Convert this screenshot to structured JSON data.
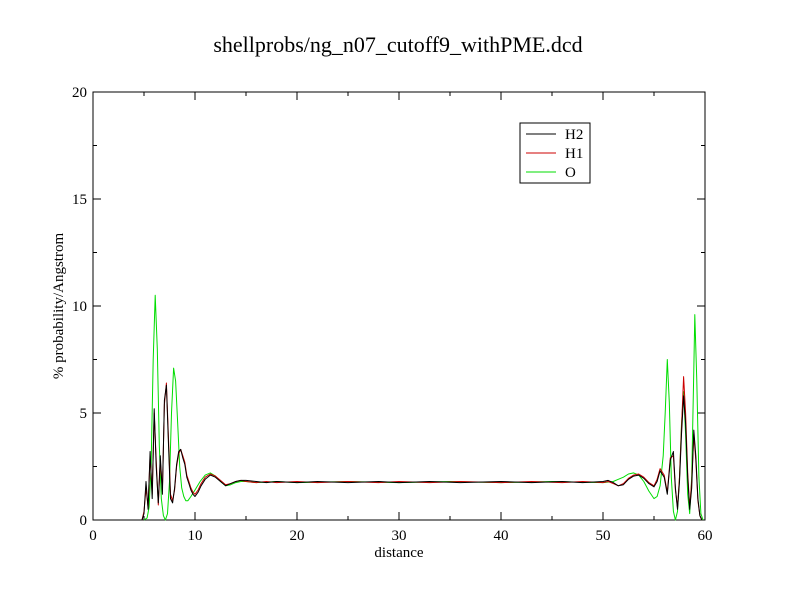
{
  "chart_data": {
    "type": "line",
    "title": "shellprobs/ng_n07_cutoff9_withPME.dcd",
    "xlabel": "distance",
    "ylabel": "% probability/Angstrom",
    "xlim": [
      0,
      60
    ],
    "ylim": [
      0,
      20
    ],
    "x_ticks": [
      0,
      10,
      20,
      30,
      40,
      50,
      60
    ],
    "y_ticks": [
      0,
      5,
      10,
      15,
      20
    ],
    "grid": false,
    "legend_position": "top-right",
    "series": [
      {
        "name": "H2",
        "color": "#000000",
        "points": [
          [
            4.8,
            0
          ],
          [
            5.0,
            0.3
          ],
          [
            5.2,
            1.8
          ],
          [
            5.4,
            0.5
          ],
          [
            5.6,
            3.2
          ],
          [
            5.8,
            1.0
          ],
          [
            6.0,
            5.2
          ],
          [
            6.2,
            2.5
          ],
          [
            6.4,
            0.8
          ],
          [
            6.6,
            3.0
          ],
          [
            6.8,
            1.2
          ],
          [
            7.0,
            5.6
          ],
          [
            7.2,
            6.3
          ],
          [
            7.4,
            3.5
          ],
          [
            7.6,
            1.0
          ],
          [
            7.8,
            0.8
          ],
          [
            8.0,
            1.5
          ],
          [
            8.2,
            2.6
          ],
          [
            8.4,
            3.2
          ],
          [
            8.6,
            3.3
          ],
          [
            8.8,
            2.9
          ],
          [
            9.0,
            2.6
          ],
          [
            9.2,
            2.0
          ],
          [
            9.4,
            1.7
          ],
          [
            9.6,
            1.4
          ],
          [
            9.8,
            1.2
          ],
          [
            10.0,
            1.1
          ],
          [
            10.3,
            1.3
          ],
          [
            10.6,
            1.6
          ],
          [
            11.0,
            1.9
          ],
          [
            11.5,
            2.1
          ],
          [
            12.0,
            2.0
          ],
          [
            12.5,
            1.8
          ],
          [
            13.0,
            1.6
          ],
          [
            13.5,
            1.7
          ],
          [
            14.0,
            1.8
          ],
          [
            14.5,
            1.85
          ],
          [
            15.0,
            1.85
          ],
          [
            16.0,
            1.8
          ],
          [
            17.0,
            1.75
          ],
          [
            18.0,
            1.8
          ],
          [
            20.0,
            1.75
          ],
          [
            22.0,
            1.8
          ],
          [
            25.0,
            1.75
          ],
          [
            28.0,
            1.8
          ],
          [
            30.0,
            1.75
          ],
          [
            33.0,
            1.8
          ],
          [
            36.0,
            1.75
          ],
          [
            40.0,
            1.8
          ],
          [
            43.0,
            1.75
          ],
          [
            46.0,
            1.8
          ],
          [
            48.0,
            1.75
          ],
          [
            50.0,
            1.8
          ],
          [
            50.5,
            1.85
          ],
          [
            51.0,
            1.75
          ],
          [
            51.5,
            1.6
          ],
          [
            52.0,
            1.65
          ],
          [
            52.5,
            1.9
          ],
          [
            53.0,
            2.05
          ],
          [
            53.5,
            2.1
          ],
          [
            54.0,
            1.95
          ],
          [
            54.5,
            1.7
          ],
          [
            55.0,
            1.55
          ],
          [
            55.3,
            1.8
          ],
          [
            55.6,
            2.3
          ],
          [
            56.0,
            2.0
          ],
          [
            56.3,
            1.2
          ],
          [
            56.6,
            2.8
          ],
          [
            56.9,
            3.2
          ],
          [
            57.1,
            1.5
          ],
          [
            57.3,
            0.5
          ],
          [
            57.5,
            1.8
          ],
          [
            57.7,
            4.0
          ],
          [
            57.9,
            5.8
          ],
          [
            58.1,
            4.5
          ],
          [
            58.3,
            2.0
          ],
          [
            58.5,
            0.5
          ],
          [
            58.7,
            1.5
          ],
          [
            58.9,
            4.2
          ],
          [
            59.1,
            3.0
          ],
          [
            59.3,
            1.0
          ],
          [
            59.5,
            0.2
          ],
          [
            59.7,
            0
          ]
        ]
      },
      {
        "name": "H1",
        "color": "#cc0000",
        "points": [
          [
            4.8,
            0
          ],
          [
            5.0,
            0.4
          ],
          [
            5.2,
            1.5
          ],
          [
            5.4,
            0.6
          ],
          [
            5.6,
            3.0
          ],
          [
            5.8,
            1.2
          ],
          [
            6.0,
            5.0
          ],
          [
            6.2,
            2.8
          ],
          [
            6.4,
            0.7
          ],
          [
            6.6,
            2.8
          ],
          [
            6.8,
            1.4
          ],
          [
            7.0,
            5.4
          ],
          [
            7.2,
            6.4
          ],
          [
            7.4,
            3.8
          ],
          [
            7.6,
            1.2
          ],
          [
            7.8,
            0.9
          ],
          [
            8.0,
            1.4
          ],
          [
            8.2,
            2.5
          ],
          [
            8.4,
            3.1
          ],
          [
            8.6,
            3.3
          ],
          [
            8.8,
            3.0
          ],
          [
            9.0,
            2.7
          ],
          [
            9.2,
            2.1
          ],
          [
            9.4,
            1.8
          ],
          [
            9.6,
            1.5
          ],
          [
            9.8,
            1.3
          ],
          [
            10.0,
            1.2
          ],
          [
            10.3,
            1.4
          ],
          [
            10.6,
            1.7
          ],
          [
            11.0,
            2.0
          ],
          [
            11.5,
            2.15
          ],
          [
            12.0,
            2.05
          ],
          [
            12.5,
            1.85
          ],
          [
            13.0,
            1.65
          ],
          [
            13.5,
            1.7
          ],
          [
            14.0,
            1.8
          ],
          [
            14.5,
            1.85
          ],
          [
            15.0,
            1.8
          ],
          [
            16.0,
            1.75
          ],
          [
            17.0,
            1.8
          ],
          [
            18.0,
            1.75
          ],
          [
            20.0,
            1.8
          ],
          [
            22.0,
            1.75
          ],
          [
            25.0,
            1.8
          ],
          [
            28.0,
            1.75
          ],
          [
            30.0,
            1.8
          ],
          [
            33.0,
            1.75
          ],
          [
            36.0,
            1.8
          ],
          [
            40.0,
            1.75
          ],
          [
            43.0,
            1.8
          ],
          [
            46.0,
            1.75
          ],
          [
            48.0,
            1.8
          ],
          [
            50.0,
            1.75
          ],
          [
            50.5,
            1.8
          ],
          [
            51.0,
            1.7
          ],
          [
            51.5,
            1.6
          ],
          [
            52.0,
            1.7
          ],
          [
            52.5,
            1.95
          ],
          [
            53.0,
            2.1
          ],
          [
            53.5,
            2.15
          ],
          [
            54.0,
            2.0
          ],
          [
            54.5,
            1.75
          ],
          [
            55.0,
            1.6
          ],
          [
            55.3,
            1.9
          ],
          [
            55.6,
            2.4
          ],
          [
            56.0,
            2.1
          ],
          [
            56.3,
            1.3
          ],
          [
            56.6,
            2.9
          ],
          [
            56.9,
            3.0
          ],
          [
            57.1,
            1.4
          ],
          [
            57.3,
            0.6
          ],
          [
            57.5,
            2.0
          ],
          [
            57.7,
            4.3
          ],
          [
            57.9,
            6.7
          ],
          [
            58.1,
            5.0
          ],
          [
            58.3,
            2.2
          ],
          [
            58.5,
            0.6
          ],
          [
            58.7,
            1.8
          ],
          [
            58.9,
            4.0
          ],
          [
            59.1,
            2.8
          ],
          [
            59.3,
            0.9
          ],
          [
            59.5,
            0.2
          ],
          [
            59.7,
            0
          ]
        ]
      },
      {
        "name": "O",
        "color": "#00dd00",
        "points": [
          [
            5.0,
            0
          ],
          [
            5.3,
            0.1
          ],
          [
            5.5,
            0.6
          ],
          [
            5.7,
            2.5
          ],
          [
            5.9,
            7.5
          ],
          [
            6.1,
            10.5
          ],
          [
            6.3,
            8.0
          ],
          [
            6.5,
            3.5
          ],
          [
            6.7,
            1.0
          ],
          [
            6.9,
            0.2
          ],
          [
            7.1,
            0
          ],
          [
            7.3,
            0.3
          ],
          [
            7.5,
            1.8
          ],
          [
            7.7,
            5.0
          ],
          [
            7.9,
            7.1
          ],
          [
            8.1,
            6.5
          ],
          [
            8.3,
            4.5
          ],
          [
            8.5,
            2.5
          ],
          [
            8.7,
            1.5
          ],
          [
            8.9,
            1.1
          ],
          [
            9.1,
            0.9
          ],
          [
            9.3,
            0.9
          ],
          [
            9.6,
            1.1
          ],
          [
            10.0,
            1.4
          ],
          [
            10.5,
            1.8
          ],
          [
            11.0,
            2.1
          ],
          [
            11.5,
            2.2
          ],
          [
            12.0,
            2.05
          ],
          [
            12.5,
            1.8
          ],
          [
            13.0,
            1.6
          ],
          [
            13.5,
            1.65
          ],
          [
            14.0,
            1.75
          ],
          [
            14.5,
            1.8
          ],
          [
            15.0,
            1.8
          ],
          [
            16.0,
            1.75
          ],
          [
            18.0,
            1.8
          ],
          [
            20.0,
            1.75
          ],
          [
            25.0,
            1.8
          ],
          [
            30.0,
            1.75
          ],
          [
            35.0,
            1.8
          ],
          [
            40.0,
            1.75
          ],
          [
            45.0,
            1.8
          ],
          [
            50.0,
            1.75
          ],
          [
            51.0,
            1.8
          ],
          [
            51.5,
            1.9
          ],
          [
            52.0,
            2.0
          ],
          [
            52.5,
            2.15
          ],
          [
            53.0,
            2.2
          ],
          [
            53.5,
            2.1
          ],
          [
            54.0,
            1.8
          ],
          [
            54.5,
            1.35
          ],
          [
            55.0,
            1.0
          ],
          [
            55.3,
            1.1
          ],
          [
            55.6,
            1.6
          ],
          [
            55.9,
            3.0
          ],
          [
            56.1,
            5.0
          ],
          [
            56.3,
            7.5
          ],
          [
            56.5,
            5.5
          ],
          [
            56.7,
            2.0
          ],
          [
            56.9,
            0.4
          ],
          [
            57.1,
            0
          ],
          [
            57.3,
            0.4
          ],
          [
            57.5,
            2.0
          ],
          [
            57.7,
            4.5
          ],
          [
            57.9,
            6.0
          ],
          [
            58.1,
            4.0
          ],
          [
            58.3,
            1.2
          ],
          [
            58.5,
            0.3
          ],
          [
            58.7,
            2.0
          ],
          [
            58.9,
            7.0
          ],
          [
            59.0,
            9.6
          ],
          [
            59.2,
            6.5
          ],
          [
            59.4,
            2.0
          ],
          [
            59.6,
            0.3
          ],
          [
            59.8,
            0
          ]
        ]
      }
    ]
  }
}
